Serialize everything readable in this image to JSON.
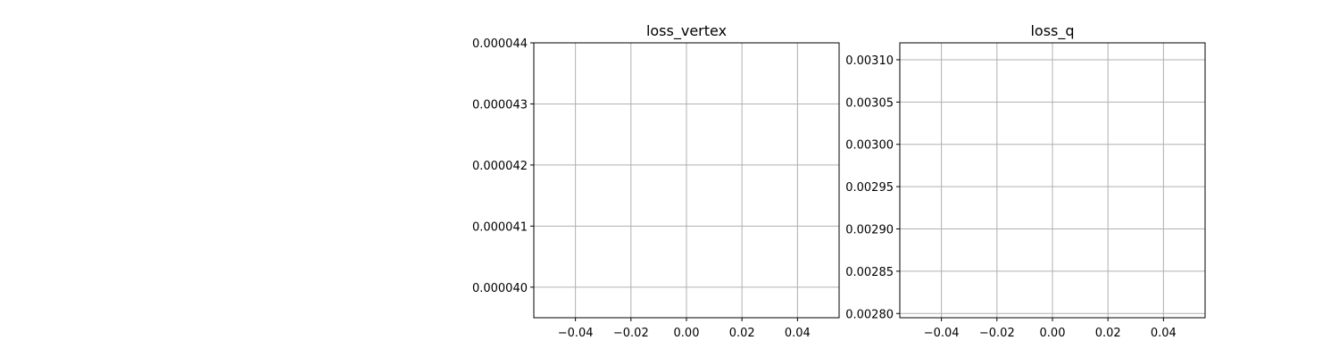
{
  "chart_data": [
    {
      "type": "line",
      "title": "loss_vertex",
      "xlabel": "",
      "ylabel": "",
      "grid": true,
      "xlim": [
        -0.055,
        0.055
      ],
      "ylim": [
        3.95e-05,
        4.4e-05
      ],
      "xticks": [
        -0.04,
        -0.02,
        0.0,
        0.02,
        0.04
      ],
      "xtick_labels": [
        "−0.04",
        "−0.02",
        "0.00",
        "0.02",
        "0.04"
      ],
      "yticks": [
        4e-05,
        4.1e-05,
        4.2e-05,
        4.3e-05,
        4.4e-05
      ],
      "ytick_labels": [
        "0.000040",
        "0.000041",
        "0.000042",
        "0.000043",
        "0.000044"
      ],
      "series": []
    },
    {
      "type": "line",
      "title": "loss_q",
      "xlabel": "",
      "ylabel": "",
      "grid": true,
      "xlim": [
        -0.055,
        0.055
      ],
      "ylim": [
        0.002795,
        0.00312
      ],
      "xticks": [
        -0.04,
        -0.02,
        0.0,
        0.02,
        0.04
      ],
      "xtick_labels": [
        "−0.04",
        "−0.02",
        "0.00",
        "0.02",
        "0.04"
      ],
      "yticks": [
        0.0028,
        0.00285,
        0.0029,
        0.00295,
        0.003,
        0.00305,
        0.0031
      ],
      "ytick_labels": [
        "0.00280",
        "0.00285",
        "0.00290",
        "0.00295",
        "0.00300",
        "0.00305",
        "0.00310"
      ],
      "series": []
    }
  ]
}
